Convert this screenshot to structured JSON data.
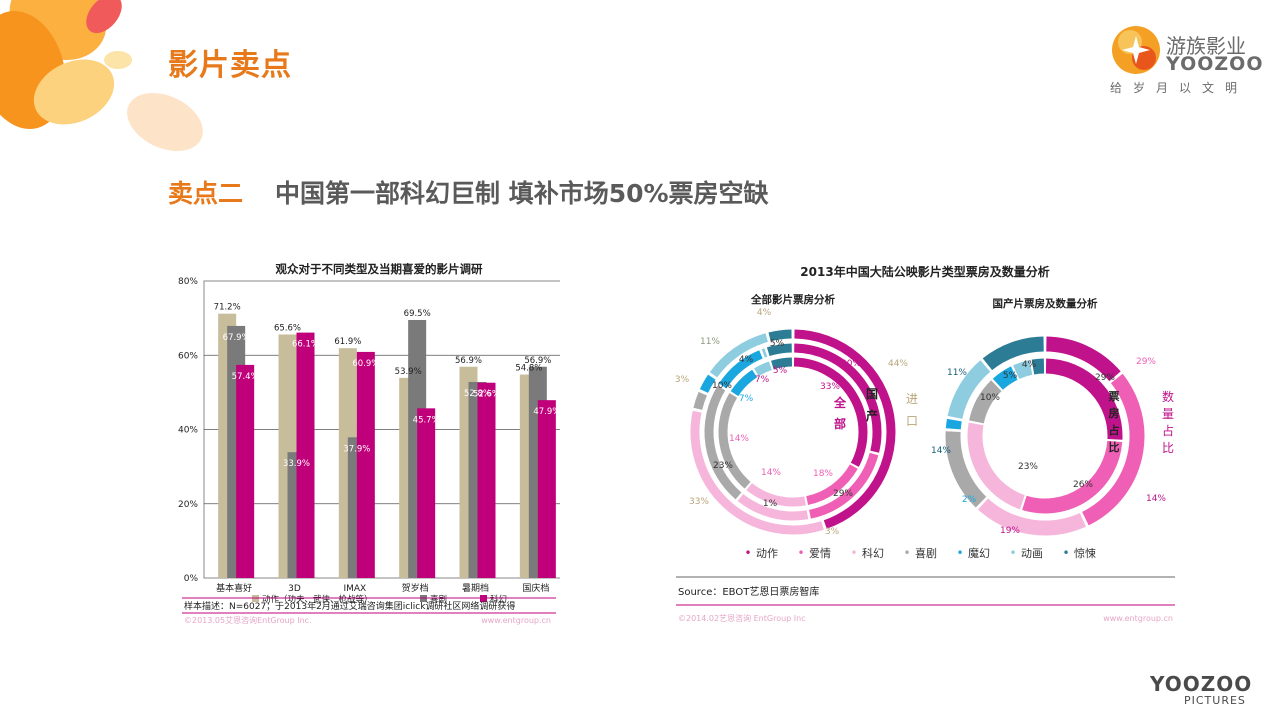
{
  "header": {
    "title": "影片卖点",
    "logo": {
      "cn": "游族影业",
      "en": "YOOZOO",
      "slogan": "给岁月以文明"
    }
  },
  "subtitle": {
    "highlight": "卖点二",
    "text": "中国第一部科幻巨制  填补市场50%票房空缺"
  },
  "footer_logo": {
    "line1": "YOOZOO",
    "line2": "PICTURES"
  },
  "chart_data": [
    {
      "type": "bar",
      "title": "观众对于不同类型及当期喜爱的影片调研",
      "categories": [
        "基本喜好",
        "3D",
        "IMAX",
        "贺岁档",
        "暑期档",
        "国庆档"
      ],
      "series": [
        {
          "name": "动作（功夫、武侠、枪战等）",
          "values": [
            71.2,
            65.6,
            61.9,
            53.9,
            56.9,
            54.8
          ],
          "color": "#c8bd9b"
        },
        {
          "name": "喜剧",
          "values": [
            67.9,
            33.9,
            37.9,
            69.5,
            52.8,
            56.9
          ],
          "color": "#7a7a7a"
        },
        {
          "name": "科幻",
          "values": [
            57.4,
            66.1,
            60.9,
            45.7,
            52.6,
            47.9
          ],
          "color": "#c0007a"
        }
      ],
      "yticks": [
        "0%",
        "20%",
        "40%",
        "60%",
        "80%"
      ],
      "ylim": [
        0,
        80
      ],
      "grid": true,
      "legend": "bottom",
      "note": "样本描述：N=6027；于2013年2月通过艾瑞咨询集团iclick调研社区网络调研获得",
      "copyright_left": "©2013.05艾恩咨询EntGroup Inc.",
      "copyright_right": "www.entgroup.cn"
    },
    {
      "type": "pie",
      "title": "2013年中国大陆公映影片类型票房及数量分析",
      "left_chart": {
        "title": "全部影片票房分析",
        "center_label": "全部",
        "rings": [
          {
            "label": "进口",
            "values": [
              44,
              0,
              33,
              3,
              3,
              11,
              4
            ],
            "labels": [
              "44%",
              "",
              "33%",
              "3%",
              "3%",
              "11%",
              "4%"
            ]
          },
          {
            "label": "国产",
            "values": [
              29,
              18,
              14,
              23,
              10,
              1,
              5
            ],
            "labels": [
              "29%",
              "18%",
              "14%",
              "23%",
              "10%",
              "1%",
              "5%"
            ]
          },
          {
            "label": "全部",
            "values": [
              33,
              14,
              14,
              23,
              7,
              4,
              5
            ],
            "labels": [
              "33%",
              "14%",
              "14%",
              "23%",
              "7%",
              "4%",
              "5%"
            ]
          }
        ],
        "label_20": "20%"
      },
      "right_chart": {
        "title": "国产片票房及数量分析",
        "center_label": "票房占比",
        "outer_label": "数量占比",
        "rings": [
          {
            "label": "数量占比",
            "values": [
              14,
              29,
              19,
              14,
              2,
              11,
              11
            ],
            "labels": [
              "14%",
              "29%",
              "19%",
              "14%",
              "2%",
              "11%",
              "11%"
            ]
          },
          {
            "label": "票房占比",
            "values": [
              26,
              29,
              23,
              10,
              5,
              4,
              3
            ],
            "labels": [
              "26%",
              "29%",
              "23%",
              "10%",
              "5%",
              "4%",
              ""
            ]
          }
        ]
      },
      "categories": [
        "动作",
        "爱情",
        "科幻",
        "喜剧",
        "魔幻",
        "动画",
        "惊悚"
      ],
      "colors": [
        "#c0128a",
        "#ef5fb5",
        "#f6b6dc",
        "#a9a9a9",
        "#1aa7e0",
        "#8ecde0",
        "#2d7c96"
      ],
      "source": "Source：EBOT艺恩日票房智库",
      "copyright_left": "©2014.02艺恩咨询 EntGroup Inc",
      "copyright_right": "www.entgroup.cn"
    }
  ]
}
